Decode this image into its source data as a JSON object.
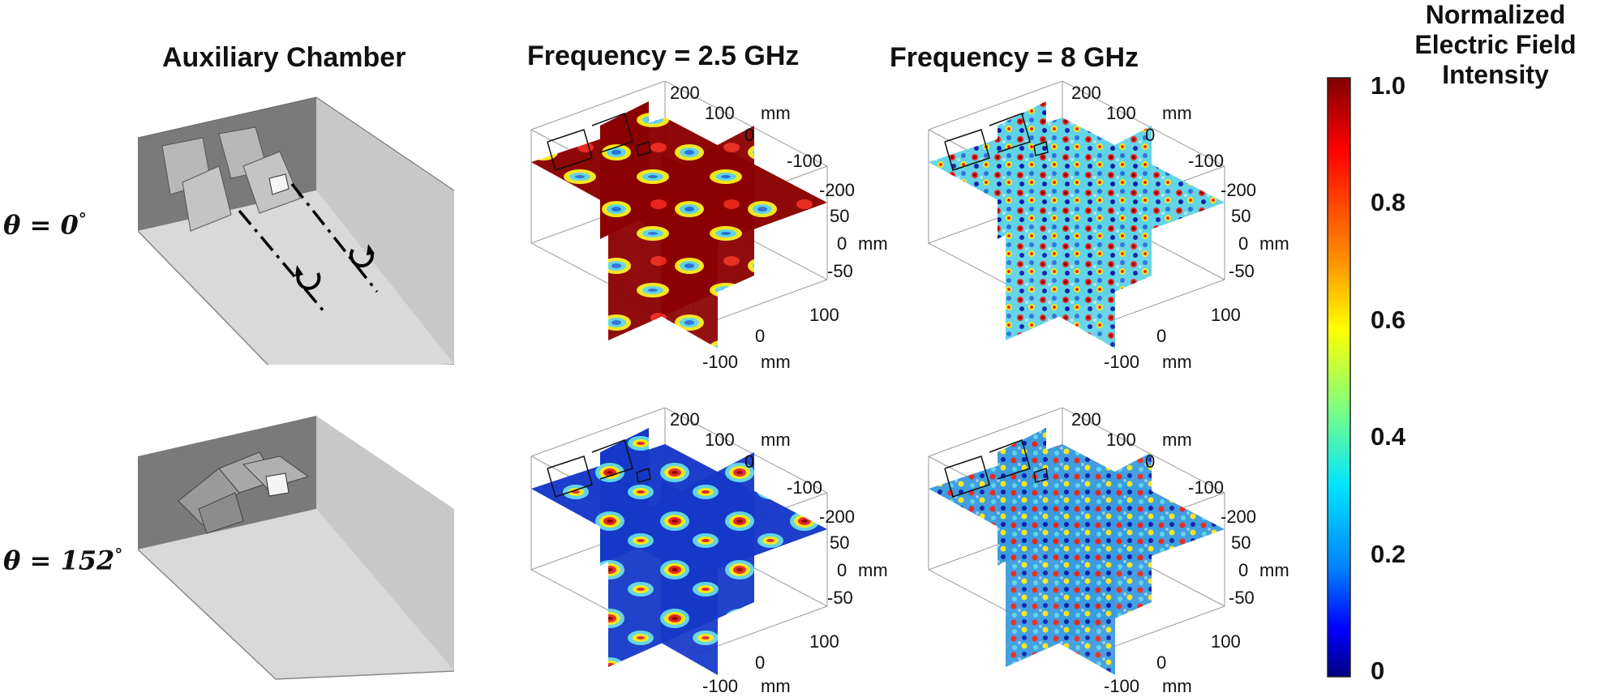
{
  "columns": {
    "auxiliary": "Auxiliary Chamber",
    "freq1": "Frequency = 2.5 GHz",
    "freq2": "Frequency = 8 GHz"
  },
  "rows": [
    {
      "theta_prefix": "θ = ",
      "theta_value": "0",
      "degree": "°"
    },
    {
      "theta_prefix": "θ = ",
      "theta_value": "152",
      "degree": "°"
    }
  ],
  "axes": {
    "y_top": "200",
    "y_100": "100",
    "y_0": "0",
    "y_m100": "-100",
    "y_m200": "-200",
    "y_unit": "mm",
    "z_50": "50",
    "z_0": "0",
    "z_m50": "-50",
    "z_unit": "mm",
    "x_100": "100",
    "x_0": "0",
    "x_m100": "-100",
    "x_unit": "mm"
  },
  "colorbar": {
    "title_line1": "Normalized",
    "title_line2": "Electric Field",
    "title_line3": "Intensity",
    "ticks": [
      "1.0",
      "0.8",
      "0.6",
      "0.4",
      "0.2",
      "0"
    ],
    "colors": [
      "#7f0000",
      "#ff0000",
      "#ff8c00",
      "#ffff00",
      "#7fff7f",
      "#00e5ff",
      "#0080ff",
      "#0000ff",
      "#00007f"
    ]
  },
  "field_colors": {
    "high": "#8b0000",
    "red": "#e8261b",
    "orange": "#ff8c00",
    "yellow": "#f5e61c",
    "cyan": "#5fd3e6",
    "blue": "#2a6fd8",
    "navy": "#0d1fa8"
  }
}
